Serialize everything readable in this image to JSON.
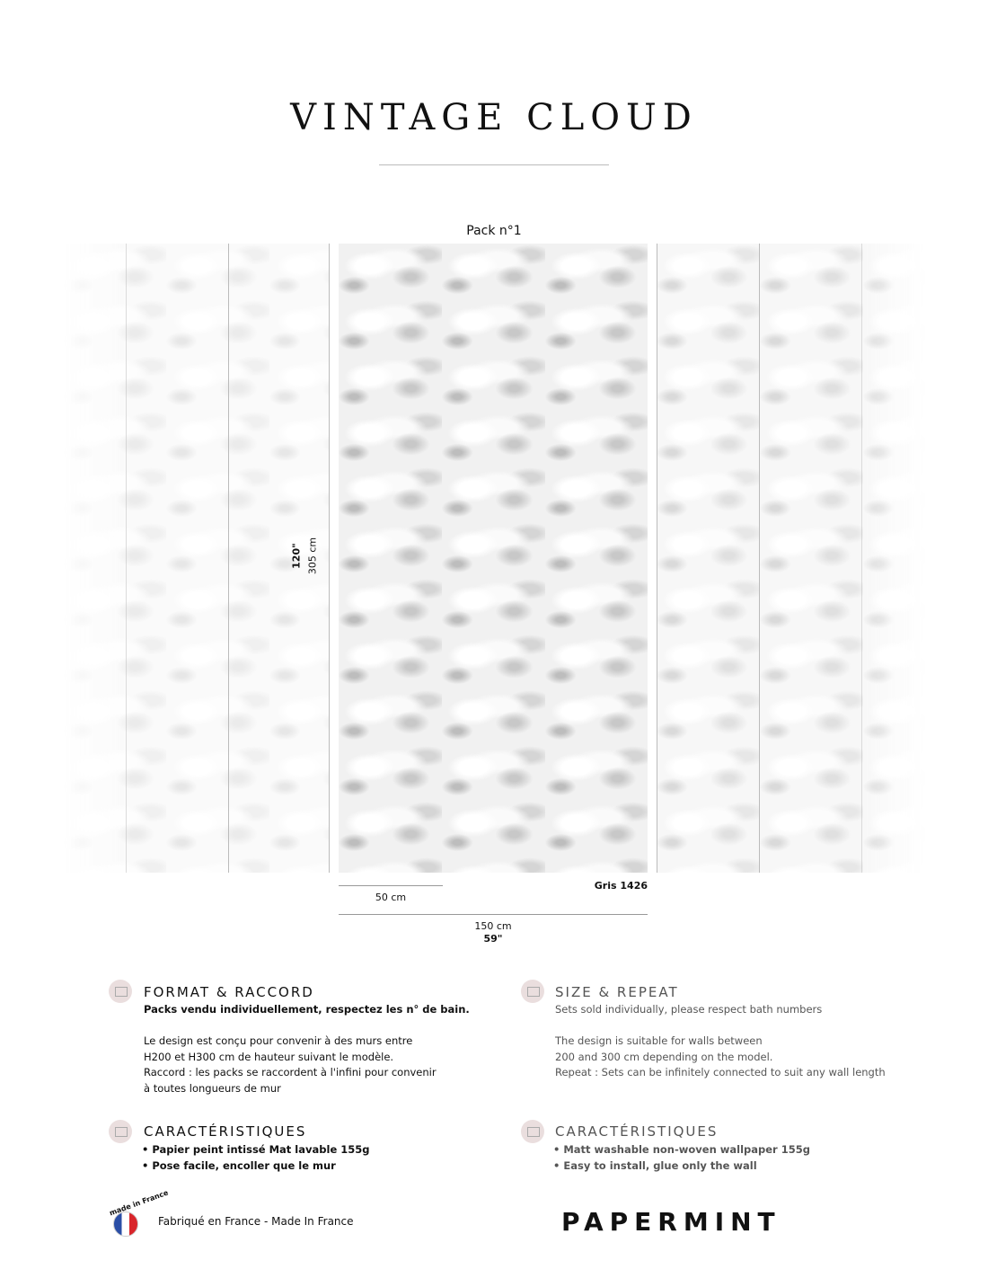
{
  "title": "VINTAGE CLOUD",
  "pack_label": "Pack n°1",
  "dimensions": {
    "height_in": "120\"",
    "height_cm": "305 cm",
    "strip_width": "50 cm",
    "color": "Gris 1426",
    "total_width_cm": "150 cm",
    "total_width_in": "59\""
  },
  "fr": {
    "format_heading": "FORMAT & RACCORD",
    "format_bold": "Packs vendu individuellement, respectez les n° de bain.",
    "format_lines": [
      "Le design est conçu pour convenir à des murs entre",
      "H200 et H300 cm de hauteur suivant le modèle.",
      "Raccord : les packs se raccordent à l'infini pour convenir",
      "à toutes longueurs de mur"
    ],
    "char_heading": "CARACTÉRISTIQUES",
    "char_items": [
      "• Papier peint intissé Mat lavable 155g",
      "• Pose facile, encoller que le mur"
    ]
  },
  "en": {
    "format_heading": "SIZE & REPEAT",
    "format_bold": "Sets sold individually, please respect bath numbers",
    "format_lines": [
      "The design is suitable for walls between",
      "200 and 300 cm depending on the model.",
      "Repeat : Sets can be infinitely connected to suit any wall length"
    ],
    "char_heading": "CARACTÉRISTIQUES",
    "char_items": [
      "• Matt washable non-woven wallpaper 155g",
      "• Easy to install, glue only the wall"
    ]
  },
  "footer": {
    "made_in": "Fabriqué en France - Made In France",
    "badge_text": "made in France",
    "brand": "PAPERMINT"
  }
}
